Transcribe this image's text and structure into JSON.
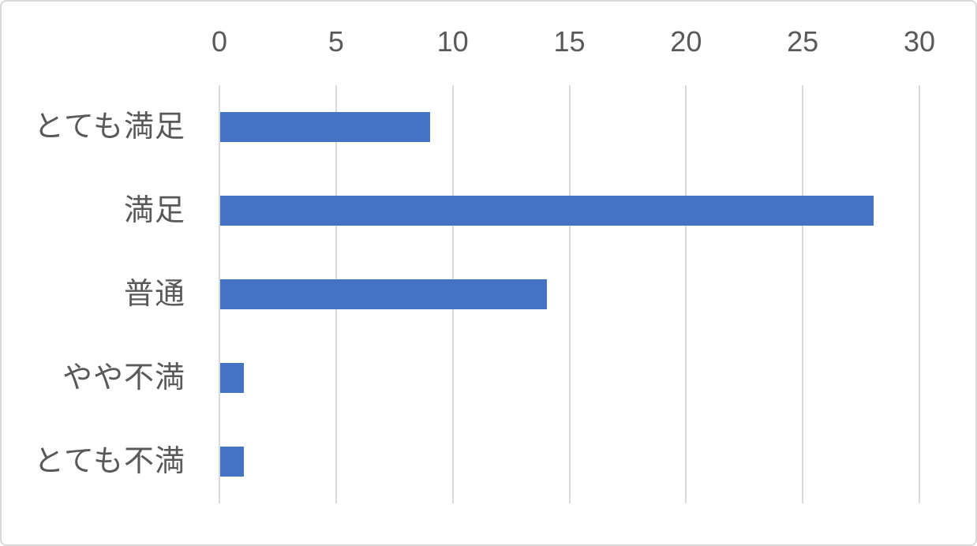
{
  "chart_data": {
    "type": "bar",
    "orientation": "horizontal",
    "title": "",
    "xlabel": "",
    "ylabel": "",
    "categories": [
      "とても満足",
      "満足",
      "普通",
      "やや不満",
      "とても不満"
    ],
    "values": [
      9,
      28,
      14,
      1,
      1
    ],
    "xlim": [
      0,
      30
    ],
    "xticks": [
      0,
      5,
      10,
      15,
      20,
      25,
      30
    ],
    "grid": true,
    "legend": "none",
    "colors": {
      "bar": "#4472C4",
      "gridline": "#D9D9D9",
      "tick_label": "#595959",
      "category_label": "#595959",
      "background": "#FFFFFF",
      "border": "#D9D9D9"
    }
  }
}
